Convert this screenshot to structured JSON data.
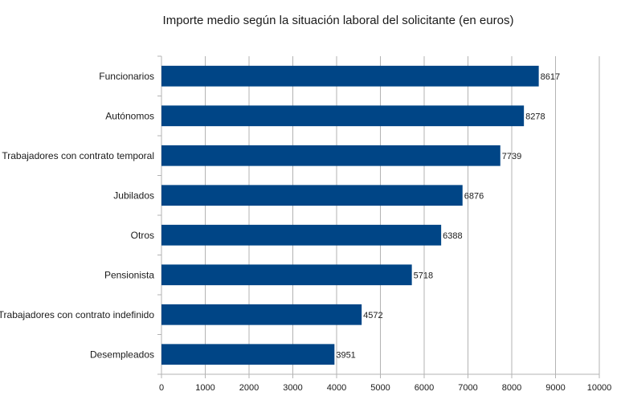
{
  "chart_data": {
    "type": "bar",
    "orientation": "horizontal",
    "title": "Importe medio según la situación laboral del solicitante (en euros)",
    "xlabel": "",
    "ylabel": "",
    "categories": [
      "Funcionarios",
      "Autónomos",
      "Trabajadores con contrato temporal",
      "Jubilados",
      "Otros",
      "Pensionista",
      "Trabajadores con contrato indefinido",
      "Desempleados"
    ],
    "values": [
      8617,
      8278,
      7739,
      6876,
      6388,
      5718,
      4572,
      3951
    ],
    "data_labels": [
      "8617",
      "8278",
      "7739",
      "6876",
      "6388",
      "5718",
      "4572",
      "3951"
    ],
    "xlim": [
      0,
      10000
    ],
    "xticks": [
      0,
      1000,
      2000,
      3000,
      4000,
      5000,
      6000,
      7000,
      8000,
      9000,
      10000
    ],
    "xtick_labels": [
      "0",
      "1000",
      "2000",
      "3000",
      "4000",
      "5000",
      "6000",
      "7000",
      "8000",
      "9000",
      "10000"
    ],
    "grid": true,
    "legend": "none",
    "bar_color": "#004586",
    "grid_color": "#b3b3b3"
  }
}
